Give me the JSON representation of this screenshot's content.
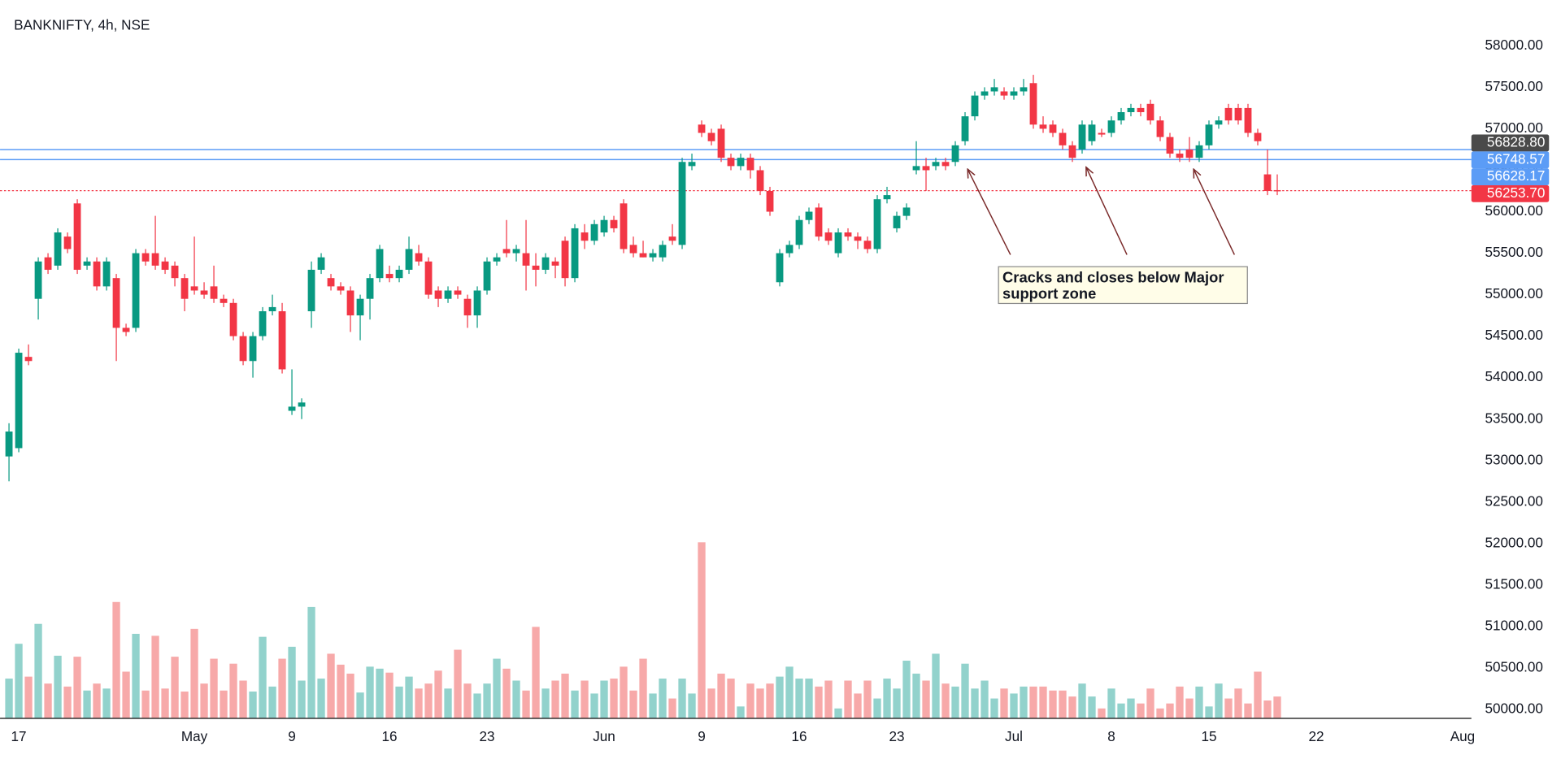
{
  "chart_data": {
    "type": "candlestick",
    "title": "BANKNIFTY, 4h, NSE",
    "categories": [
      null,
      "17",
      null,
      null,
      null,
      null,
      null,
      null,
      null,
      null,
      null,
      null,
      null,
      null,
      null,
      null,
      null,
      null,
      null,
      "May",
      null,
      null,
      null,
      null,
      null,
      null,
      null,
      null,
      null,
      "9",
      null,
      null,
      null,
      null,
      null,
      null,
      null,
      null,
      null,
      "16",
      null,
      null,
      null,
      null,
      null,
      null,
      null,
      null,
      null,
      "23",
      null,
      null,
      null,
      null,
      null,
      null,
      null,
      null,
      null,
      null,
      null,
      "Jun",
      null,
      null,
      null,
      null,
      null,
      null,
      null,
      null,
      null,
      "9",
      null,
      null,
      null,
      null,
      null,
      null,
      null,
      null,
      null,
      "16",
      null,
      null,
      null,
      null,
      null,
      null,
      null,
      null,
      null,
      "23",
      null,
      null,
      null,
      null,
      null,
      null,
      null,
      null,
      null,
      null,
      null,
      "Jul",
      null,
      null,
      null,
      null,
      null,
      null,
      null,
      null,
      null,
      "8",
      null,
      null,
      null,
      null,
      null,
      null,
      null,
      null,
      null,
      "15",
      null,
      null,
      null,
      null,
      null,
      null,
      null,
      null,
      null,
      null,
      "22",
      null,
      null,
      null,
      null,
      null,
      null,
      null,
      null,
      null,
      null,
      null,
      null,
      null,
      null,
      "Aug",
      null
    ],
    "open": [
      53050,
      53150,
      54250,
      54950,
      55450,
      55350,
      55700,
      56100,
      55350,
      55400,
      55100,
      55200,
      54600,
      54600,
      55500,
      55500,
      55400,
      55350,
      55200,
      55100,
      55050,
      55100,
      54950,
      54900,
      54500,
      54200,
      54500,
      54800,
      54800,
      53600,
      53650,
      54800,
      55300,
      55200,
      55100,
      55050,
      54750,
      54950,
      55200,
      55250,
      55200,
      55300,
      55500,
      55400,
      55050,
      54950,
      55050,
      54950,
      54750,
      55050,
      55400,
      55550,
      55500,
      55500,
      55350,
      55300,
      55400,
      55650,
      55200,
      55750,
      55650,
      55750,
      55900,
      56100,
      55600,
      55500,
      55450,
      55450,
      55700,
      55600,
      56550,
      57050,
      56950,
      57000,
      56650,
      56550,
      56650,
      56500,
      56250,
      55150,
      55500,
      55600,
      55900,
      56050,
      55750,
      55500,
      55750,
      55700,
      55650,
      55550,
      56150,
      55800,
      55950,
      56500,
      56550,
      56550,
      56600,
      56600,
      56850,
      57150,
      57400,
      57450,
      57450,
      57400,
      57450,
      57550,
      57050,
      57050,
      56950,
      56800,
      56750,
      56850,
      56950,
      56950,
      57100,
      57200,
      57250,
      57300,
      57100,
      56900,
      56700,
      56750,
      56650,
      56800,
      57050,
      57250,
      57250,
      57250,
      56950,
      56450,
      56260,
      null,
      null,
      null,
      null,
      null,
      null,
      null,
      null,
      null,
      null,
      null,
      null,
      null,
      null,
      null,
      null,
      null,
      null,
      null,
      null
    ],
    "high": [
      53450,
      54350,
      54400,
      55450,
      55500,
      55800,
      55750,
      56150,
      55450,
      55450,
      55450,
      55250,
      54650,
      55550,
      55550,
      55950,
      55450,
      55400,
      55250,
      55700,
      55150,
      55350,
      55000,
      54950,
      54550,
      54550,
      54850,
      55000,
      54900,
      54100,
      53750,
      55400,
      55500,
      55250,
      55150,
      55100,
      55000,
      55250,
      55600,
      55350,
      55350,
      55700,
      55600,
      55450,
      55100,
      55100,
      55100,
      55000,
      55100,
      55450,
      55500,
      55900,
      55600,
      55900,
      55500,
      55500,
      55450,
      55700,
      55850,
      55850,
      55900,
      55950,
      55950,
      56150,
      55700,
      55650,
      55550,
      55650,
      55850,
      56650,
      56700,
      57100,
      57000,
      57050,
      56700,
      56700,
      56700,
      56550,
      56300,
      55550,
      55650,
      55950,
      56050,
      56100,
      55800,
      55800,
      55800,
      55750,
      55700,
      56200,
      56300,
      56000,
      56100,
      56850,
      56650,
      56650,
      56650,
      56850,
      57200,
      57450,
      57500,
      57600,
      57500,
      57500,
      57600,
      57650,
      57150,
      57100,
      57000,
      56850,
      57100,
      57100,
      57000,
      57150,
      57250,
      57300,
      57300,
      57350,
      57150,
      56950,
      56750,
      56900,
      56850,
      57100,
      57150,
      57300,
      57300,
      57300,
      57000,
      56750,
      56450,
      null,
      null,
      null,
      null,
      null,
      null,
      null,
      null,
      null,
      null,
      null,
      null,
      null,
      null,
      null,
      null,
      null,
      null,
      null,
      null
    ],
    "low": [
      52750,
      53100,
      54150,
      54700,
      55250,
      55300,
      55500,
      55250,
      55300,
      55050,
      55050,
      54200,
      54500,
      54550,
      55350,
      55300,
      55250,
      55100,
      54800,
      55000,
      54950,
      54900,
      54850,
      54450,
      54150,
      54000,
      54450,
      54750,
      54050,
      53550,
      53500,
      54600,
      55250,
      55050,
      55000,
      54550,
      54450,
      54700,
      55150,
      55150,
      55150,
      55250,
      55350,
      54950,
      54850,
      54900,
      54950,
      54600,
      54600,
      55000,
      55350,
      55450,
      55400,
      55050,
      55100,
      55250,
      55200,
      55100,
      55150,
      55550,
      55600,
      55700,
      55750,
      55500,
      55450,
      55450,
      55400,
      55400,
      55600,
      55550,
      56500,
      56900,
      56800,
      56600,
      56500,
      56500,
      56400,
      56200,
      55950,
      55100,
      55450,
      55550,
      55850,
      55650,
      55600,
      55450,
      55650,
      55550,
      55500,
      55500,
      56100,
      55750,
      55900,
      56450,
      56250,
      56500,
      56500,
      56550,
      56800,
      57100,
      57350,
      57400,
      57350,
      57350,
      57400,
      57000,
      56950,
      56900,
      56750,
      56600,
      56700,
      56800,
      56900,
      56900,
      57050,
      57150,
      57150,
      57050,
      56850,
      56650,
      56600,
      56600,
      56600,
      56750,
      57000,
      57050,
      57050,
      56900,
      56800,
      56200,
      56200,
      null,
      null,
      null,
      null,
      null,
      null,
      null,
      null,
      null,
      null,
      null,
      null,
      null,
      null,
      null,
      null,
      null,
      null,
      null,
      null
    ],
    "close": [
      53350,
      54300,
      54200,
      55400,
      55300,
      55750,
      55550,
      55300,
      55400,
      55100,
      55400,
      54600,
      54550,
      55500,
      55400,
      55350,
      55300,
      55200,
      54950,
      55050,
      55000,
      54950,
      54900,
      54500,
      54200,
      54500,
      54800,
      54850,
      54100,
      53650,
      53700,
      55300,
      55450,
      55100,
      55050,
      54750,
      54950,
      55200,
      55550,
      55200,
      55300,
      55550,
      55400,
      55000,
      54950,
      55050,
      55000,
      54750,
      55050,
      55400,
      55450,
      55500,
      55550,
      55350,
      55300,
      55450,
      55350,
      55200,
      55800,
      55650,
      55850,
      55900,
      55800,
      55550,
      55500,
      55450,
      55500,
      55600,
      55650,
      56600,
      56600,
      56950,
      56850,
      56650,
      56550,
      56650,
      56500,
      56250,
      56000,
      55500,
      55600,
      55900,
      56000,
      55700,
      55650,
      55750,
      55700,
      55650,
      55550,
      56150,
      56200,
      55950,
      56050,
      56550,
      56500,
      56600,
      56550,
      56800,
      57150,
      57400,
      57450,
      57500,
      57400,
      57450,
      57500,
      57050,
      57000,
      56950,
      56800,
      56650,
      57050,
      57050,
      56930,
      57100,
      57200,
      57250,
      57200,
      57100,
      56900,
      56700,
      56650,
      56650,
      56800,
      57050,
      57100,
      57100,
      57100,
      56950,
      56850,
      56250,
      56253.7,
      null,
      null,
      null,
      null,
      null,
      null,
      null,
      null,
      null,
      null,
      null,
      null,
      null,
      null,
      null,
      null,
      null,
      null,
      null,
      null
    ],
    "volume": [
      40,
      75,
      42,
      95,
      35,
      63,
      32,
      62,
      28,
      35,
      30,
      117,
      47,
      85,
      28,
      83,
      30,
      62,
      27,
      90,
      35,
      60,
      28,
      55,
      38,
      27,
      82,
      32,
      60,
      72,
      38,
      112,
      40,
      65,
      54,
      45,
      26,
      52,
      50,
      46,
      32,
      42,
      30,
      35,
      48,
      30,
      69,
      35,
      25,
      35,
      60,
      50,
      38,
      28,
      92,
      30,
      38,
      45,
      28,
      38,
      25,
      38,
      40,
      52,
      28,
      60,
      25,
      40,
      20,
      40,
      25,
      177,
      30,
      45,
      40,
      12,
      35,
      30,
      35,
      42,
      52,
      40,
      40,
      32,
      38,
      10,
      38,
      25,
      38,
      20,
      40,
      30,
      58,
      45,
      38,
      65,
      35,
      32,
      55,
      30,
      38,
      20,
      30,
      25,
      32,
      32,
      32,
      28,
      28,
      22,
      35,
      22,
      10,
      30,
      15,
      20,
      15,
      30,
      10,
      15,
      32,
      20,
      32,
      12,
      35,
      20,
      30,
      15,
      47,
      18,
      22,
      null,
      null,
      null,
      null,
      null,
      null,
      null,
      null,
      null,
      null,
      null,
      null,
      null,
      null,
      null,
      null,
      null,
      null,
      null,
      null
    ],
    "colors": {
      "up": "#089981",
      "down": "#f23645",
      "volume_up": "#92d2cc",
      "volume_down": "#f7a9a9"
    },
    "ylim": [
      49892,
      58456
    ],
    "yticks": [
      {
        "value": 50000,
        "label": "50000.00"
      },
      {
        "value": 50500,
        "label": "50500.00"
      },
      {
        "value": 51000,
        "label": "51000.00"
      },
      {
        "value": 51500,
        "label": "51500.00"
      },
      {
        "value": 52000,
        "label": "52000.00"
      },
      {
        "value": 52500,
        "label": "52500.00"
      },
      {
        "value": 53000,
        "label": "53000.00"
      },
      {
        "value": 53500,
        "label": "53500.00"
      },
      {
        "value": 54000,
        "label": "54000.00"
      },
      {
        "value": 54500,
        "label": "54500.00"
      },
      {
        "value": 55000,
        "label": "55000.00"
      },
      {
        "value": 55500,
        "label": "55500.00"
      },
      {
        "value": 56000,
        "label": "56000.00"
      },
      {
        "value": 56500,
        "label": "56500.00"
      },
      {
        "value": 57000,
        "label": "57000.00"
      },
      {
        "value": 57500,
        "label": "57500.00"
      },
      {
        "value": 58000,
        "label": "58000.00"
      }
    ],
    "price_labels": [
      {
        "value": 56828.8,
        "label": "56828.80",
        "color": "#4a4a4a",
        "line": "none"
      },
      {
        "value": 56748.57,
        "label": "56748.57",
        "color": "#5b9cf6",
        "line": "solid"
      },
      {
        "value": 56628.17,
        "label": "56628.17",
        "color": "#5b9cf6",
        "line": "solid"
      },
      {
        "value": 56253.7,
        "label": "56253.70",
        "color": "#f23645",
        "line": "dotted"
      }
    ],
    "annotation": [
      "Cracks and closes below Major",
      "support zone"
    ]
  }
}
